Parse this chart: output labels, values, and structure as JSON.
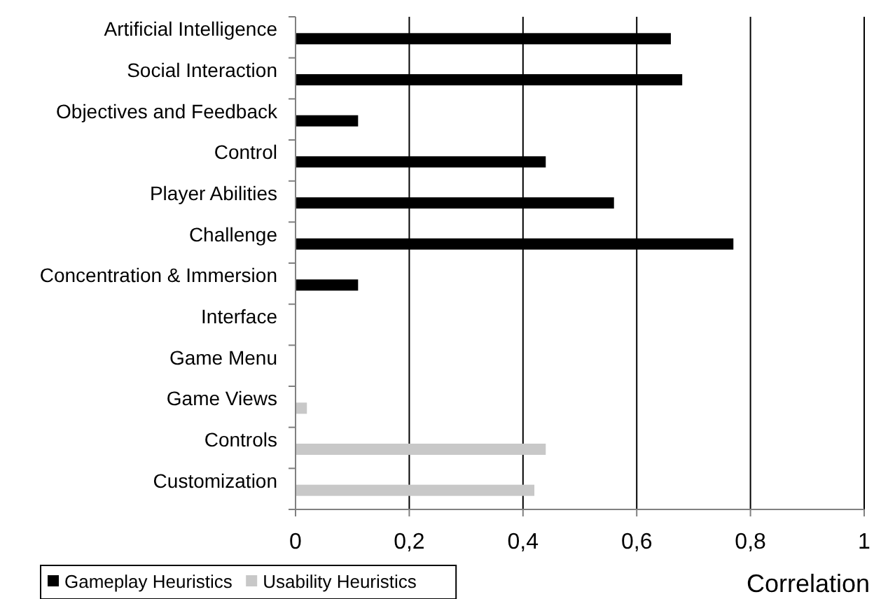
{
  "chart_data": {
    "type": "bar",
    "orientation": "horizontal",
    "xlabel": "Correlation",
    "categories": [
      "Artificial Intelligence",
      "Social Interaction",
      "Objectives and Feedback",
      "Control",
      "Player Abilities",
      "Challenge",
      "Concentration & Immersion",
      "Interface",
      "Game Menu",
      "Game Views",
      "Controls",
      "Customization"
    ],
    "series": [
      {
        "name": "Gameplay Heuristics",
        "color": "#000000",
        "values": [
          0.66,
          0.68,
          0.11,
          0.44,
          0.56,
          0.77,
          0.11,
          null,
          null,
          null,
          null,
          null
        ]
      },
      {
        "name": "Usability Heuristics",
        "color": "#c8c8c8",
        "values": [
          null,
          null,
          null,
          null,
          null,
          null,
          null,
          null,
          null,
          0.02,
          0.44,
          0.42
        ]
      }
    ],
    "xlim": [
      0,
      1
    ],
    "xticks": [
      0,
      {
        "value": 0.2,
        "label": "0,2"
      },
      {
        "value": 0.4,
        "label": "0,4"
      },
      {
        "value": 0.6,
        "label": "0,6"
      },
      {
        "value": 0.8,
        "label": "0,8"
      },
      1
    ],
    "grid": "x",
    "legend": "bottom left"
  }
}
